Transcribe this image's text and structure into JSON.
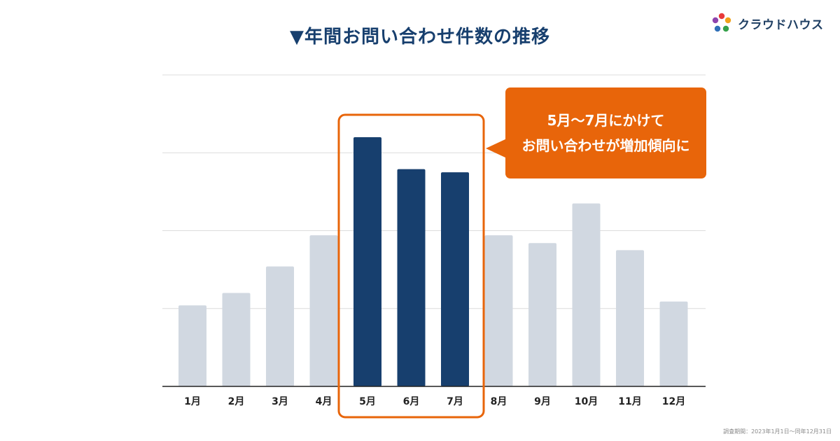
{
  "title": "▼年間お問い合わせ件数の推移",
  "brand": {
    "name": "クラウドハウス"
  },
  "callout": {
    "line1": "5月〜7月にかけて",
    "line2": "お問い合わせが増加傾向に"
  },
  "footnote": "調査期間：2023年1月1日〜同年12月31日",
  "colors": {
    "base_bar": "#d1d8e1",
    "highlight_bar": "#173f6e",
    "accent": "#e8650a",
    "grid": "#dcdcdc",
    "axis": "#222222"
  },
  "chart_data": {
    "type": "bar",
    "categories": [
      "1月",
      "2月",
      "3月",
      "4月",
      "5月",
      "6月",
      "7月",
      "8月",
      "9月",
      "10月",
      "11月",
      "12月"
    ],
    "values": [
      1.04,
      1.2,
      1.54,
      1.94,
      3.2,
      2.79,
      2.75,
      1.94,
      1.84,
      2.35,
      1.75,
      1.09
    ],
    "highlight": [
      "5月",
      "6月",
      "7月"
    ],
    "ylim": [
      0,
      4
    ],
    "y_tick_labels_shown": false,
    "grid": true,
    "xlabel": "",
    "ylabel": ""
  }
}
